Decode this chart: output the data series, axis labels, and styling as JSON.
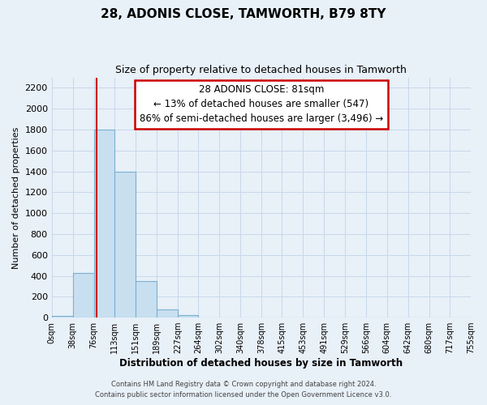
{
  "title": "28, ADONIS CLOSE, TAMWORTH, B79 8TY",
  "subtitle": "Size of property relative to detached houses in Tamworth",
  "xlabel": "Distribution of detached houses by size in Tamworth",
  "ylabel": "Number of detached properties",
  "bin_edges": [
    0,
    38,
    76,
    113,
    151,
    189,
    227,
    264,
    302,
    340,
    378,
    415,
    453,
    491,
    529,
    566,
    604,
    642,
    680,
    717,
    755
  ],
  "bar_heights": [
    15,
    430,
    1800,
    1400,
    350,
    80,
    25,
    0,
    0,
    0,
    0,
    0,
    0,
    0,
    0,
    0,
    0,
    0,
    0,
    0
  ],
  "bar_color": "#c8dff0",
  "bar_edgecolor": "#7ab0d0",
  "property_line_x": 81,
  "property_line_color": "#cc0000",
  "ylim": [
    0,
    2300
  ],
  "yticks": [
    0,
    200,
    400,
    600,
    800,
    1000,
    1200,
    1400,
    1600,
    1800,
    2000,
    2200
  ],
  "xtick_labels": [
    "0sqm",
    "38sqm",
    "76sqm",
    "113sqm",
    "151sqm",
    "189sqm",
    "227sqm",
    "264sqm",
    "302sqm",
    "340sqm",
    "378sqm",
    "415sqm",
    "453sqm",
    "491sqm",
    "529sqm",
    "566sqm",
    "604sqm",
    "642sqm",
    "680sqm",
    "717sqm",
    "755sqm"
  ],
  "annotation_line1": "28 ADONIS CLOSE: 81sqm",
  "annotation_line2": "← 13% of detached houses are smaller (547)",
  "annotation_line3": "86% of semi-detached houses are larger (3,496) →",
  "annotation_box_color": "#ffffff",
  "annotation_box_edgecolor": "#cc0000",
  "footnote1": "Contains HM Land Registry data © Crown copyright and database right 2024.",
  "footnote2": "Contains public sector information licensed under the Open Government Licence v3.0.",
  "grid_color": "#c8d8ea",
  "background_color": "#e8f0f8"
}
